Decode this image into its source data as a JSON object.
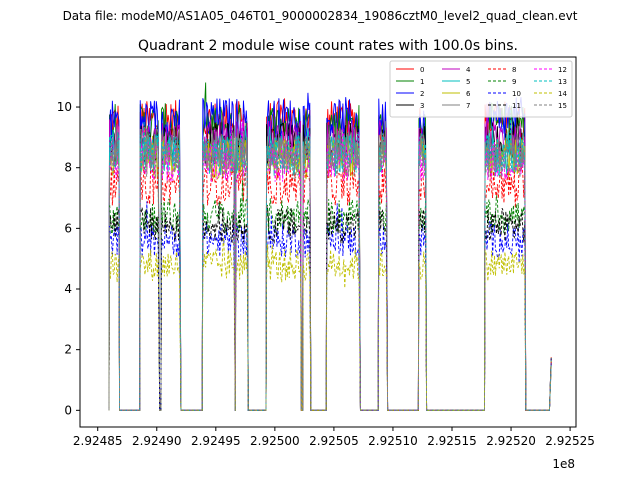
{
  "figure": {
    "suptitle": "Data file: modeM0/AS1A05_046T01_9000002834_19086cztM0_level2_quad_clean.evt"
  },
  "chart_data": {
    "type": "line",
    "title": "Quadrant 2 module wise count rates with 100.0s bins.",
    "xlabel": "",
    "ylabel": "",
    "x_offset_label": "1e8",
    "xlim": [
      2.924835,
      2.925255
    ],
    "ylim": [
      -0.55,
      11.65
    ],
    "x_ticks": [
      2.92485,
      2.9249,
      2.92495,
      2.925,
      2.92505,
      2.9251,
      2.92515,
      2.9252,
      2.92525
    ],
    "x_tick_labels": [
      "2.92485",
      "2.92490",
      "2.92495",
      "2.92500",
      "2.92505",
      "2.92510",
      "2.92515",
      "2.92520",
      "2.92525"
    ],
    "y_ticks": [
      0,
      2,
      4,
      6,
      8,
      10
    ],
    "y_tick_labels": [
      "0",
      "2",
      "4",
      "6",
      "8",
      "10"
    ],
    "grid": false,
    "legend": {
      "placement": "top-right",
      "columns": 4
    },
    "segments": [
      {
        "x_start": 2.92486,
        "x_end": 2.924868,
        "after_gap_end": 2.924885
      },
      {
        "x_start": 2.924886,
        "x_end": 2.924902,
        "after_gap_end": 2.924904
      },
      {
        "x_start": 2.924904,
        "x_end": 2.92492,
        "after_gap_end": 2.924938
      },
      {
        "x_start": 2.924939,
        "x_end": 2.924966,
        "after_gap_end": 2.924967
      },
      {
        "x_start": 2.924967,
        "x_end": 2.924977,
        "after_gap_end": 2.924993
      },
      {
        "x_start": 2.924993,
        "x_end": 2.925022,
        "after_gap_end": 2.925024
      },
      {
        "x_start": 2.925024,
        "x_end": 2.92503,
        "after_gap_end": 2.925044
      },
      {
        "x_start": 2.925044,
        "x_end": 2.925072,
        "after_gap_end": 2.925074
      },
      {
        "x_start": 2.925088,
        "x_end": 2.925095,
        "after_gap_end": 2.925122
      },
      {
        "x_start": 2.925122,
        "x_end": 2.925128,
        "after_gap_end": 2.925178
      },
      {
        "x_start": 2.925178,
        "x_end": 2.925212,
        "after_gap_end": 2.925233
      }
    ],
    "series": [
      {
        "name": "0",
        "color": "#ff0000",
        "dash": "solid",
        "level": 9.5
      },
      {
        "name": "1",
        "color": "#008000",
        "dash": "solid",
        "level": 9.4
      },
      {
        "name": "2",
        "color": "#0000ff",
        "dash": "solid",
        "level": 9.6
      },
      {
        "name": "3",
        "color": "#000000",
        "dash": "solid",
        "level": 8.8
      },
      {
        "name": "4",
        "color": "#bf00bf",
        "dash": "solid",
        "level": 8.9
      },
      {
        "name": "5",
        "color": "#00bfbf",
        "dash": "solid",
        "level": 8.4
      },
      {
        "name": "6",
        "color": "#bfbf00",
        "dash": "solid",
        "level": 8.3
      },
      {
        "name": "7",
        "color": "#808080",
        "dash": "solid",
        "level": 8.6
      },
      {
        "name": "8",
        "color": "#ff0000",
        "dash": "dashed",
        "level": 7.4
      },
      {
        "name": "9",
        "color": "#008000",
        "dash": "dashed",
        "level": 6.4
      },
      {
        "name": "10",
        "color": "#0000ff",
        "dash": "dashed",
        "level": 5.6
      },
      {
        "name": "11",
        "color": "#000000",
        "dash": "dashed",
        "level": 6.1
      },
      {
        "name": "12",
        "color": "#ff00ff",
        "dash": "dashed",
        "level": 8.2
      },
      {
        "name": "13",
        "color": "#00bfbf",
        "dash": "dashed",
        "level": 8.5
      },
      {
        "name": "14",
        "color": "#bfbf00",
        "dash": "dashed",
        "level": 4.8
      },
      {
        "name": "15",
        "color": "#808080",
        "dash": "dashed",
        "level": 8.3
      }
    ]
  }
}
